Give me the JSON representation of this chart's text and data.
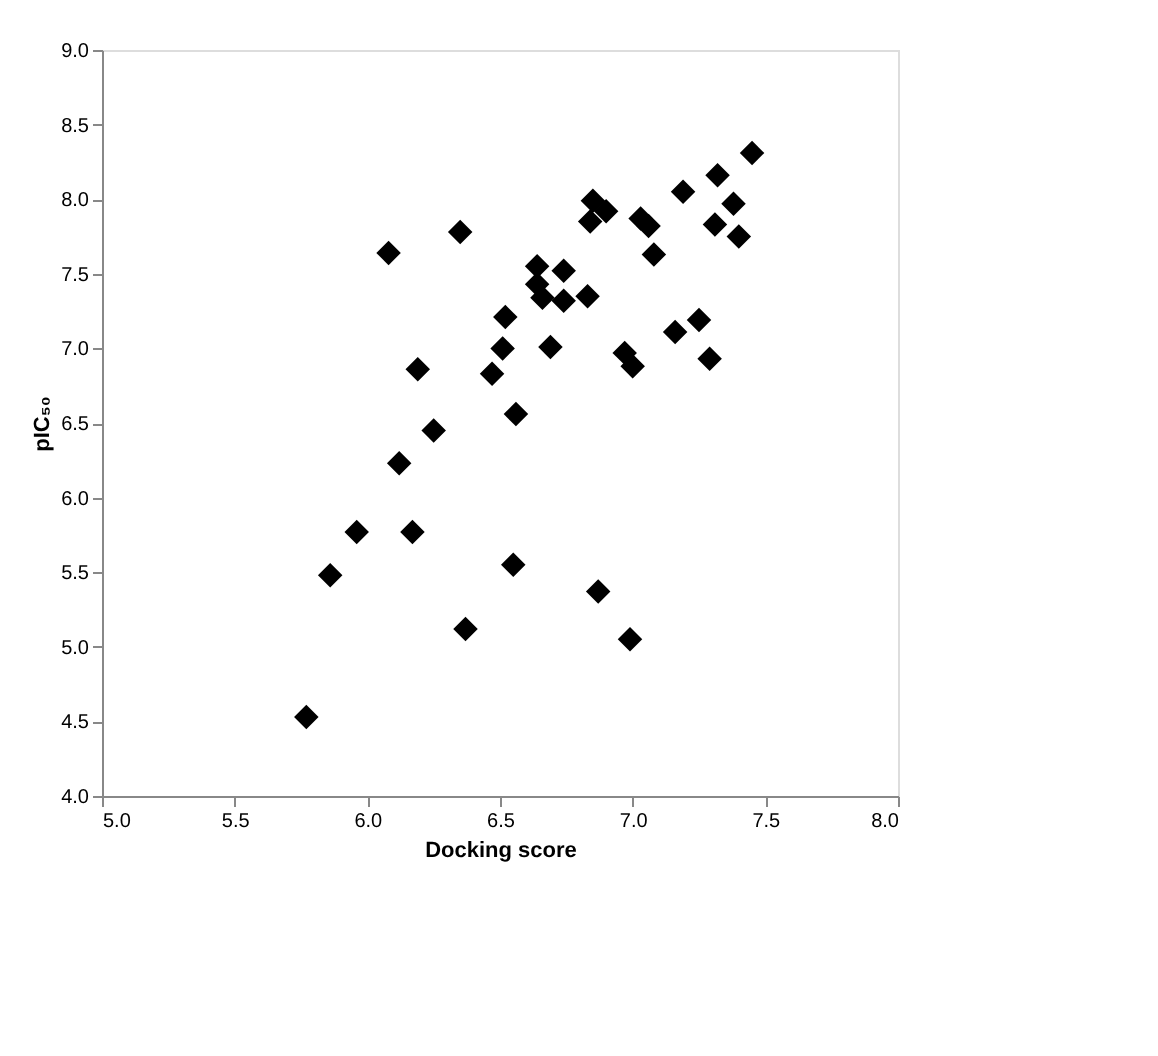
{
  "chart_data": {
    "type": "scatter",
    "xlabel": "Docking score",
    "ylabel": "pIC₅₀",
    "marker": "diamond",
    "grid": false,
    "x": [
      5.77,
      5.86,
      5.96,
      6.08,
      6.19,
      6.12,
      6.25,
      6.17,
      6.35,
      6.55,
      6.37,
      6.87,
      6.99,
      6.56,
      6.47,
      6.51,
      6.52,
      6.69,
      6.64,
      6.64,
      6.66,
      6.74,
      6.74,
      6.83,
      6.84,
      6.85,
      6.9,
      7.03,
      7.06,
      7.08,
      6.97,
      7.0,
      7.16,
      7.25,
      7.29,
      7.19,
      7.32,
      7.45,
      7.38,
      7.31,
      7.4
    ],
    "series": [
      {
        "color": "#000000",
        "values": [
          4.53,
          5.48,
          5.77,
          7.64,
          6.86,
          6.23,
          6.45,
          5.77,
          7.78,
          5.55,
          5.12,
          5.37,
          5.05,
          6.56,
          6.83,
          7.0,
          7.21,
          7.01,
          7.55,
          7.43,
          7.34,
          7.52,
          7.32,
          7.35,
          7.85,
          7.99,
          7.92,
          7.87,
          7.82,
          7.63,
          6.97,
          6.88,
          7.11,
          7.19,
          6.93,
          8.05,
          8.16,
          8.31,
          7.97,
          7.83,
          7.75
        ]
      }
    ],
    "xlim": [
      5.0,
      8.0
    ],
    "ylim": [
      4.0,
      9.0
    ],
    "xticks": [
      {
        "value": 5,
        "label": "5.0"
      },
      {
        "value": 5.5,
        "label": "5.5"
      },
      {
        "value": 6,
        "label": "6.0"
      },
      {
        "value": 6.5,
        "label": "6.5"
      },
      {
        "value": 7,
        "label": "7.0"
      },
      {
        "value": 7.5,
        "label": "7.5"
      },
      {
        "value": 8,
        "label": "8.0"
      }
    ],
    "yticks": [
      {
        "value": 4,
        "label": "4.0"
      },
      {
        "value": 4.5,
        "label": "4.5"
      },
      {
        "value": 5,
        "label": "5.0"
      },
      {
        "value": 5.5,
        "label": "5.5"
      },
      {
        "value": 6,
        "label": "6.0"
      },
      {
        "value": 6.5,
        "label": "6.5"
      },
      {
        "value": 7,
        "label": "7.0"
      },
      {
        "value": 7.5,
        "label": "7.5"
      },
      {
        "value": 8,
        "label": "8.0"
      },
      {
        "value": 8.5,
        "label": "8.5"
      },
      {
        "value": 9,
        "label": "9.0"
      }
    ]
  }
}
